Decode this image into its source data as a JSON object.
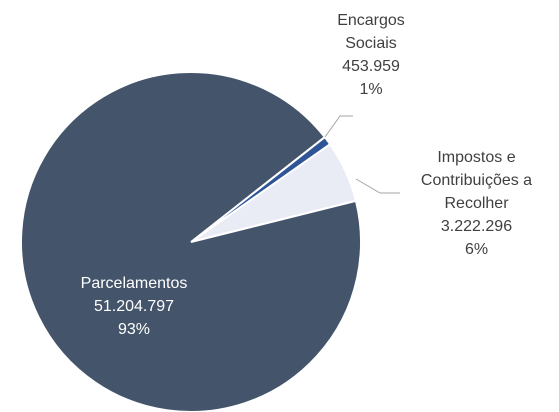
{
  "chart_data": {
    "type": "pie",
    "categories": [
      "Parcelamentos",
      "Encargos Sociais",
      "Impostos e Contribuições a Recolher"
    ],
    "values": [
      51204797,
      453959,
      3222296
    ],
    "value_labels": [
      "51.204.797",
      "453.959",
      "3.222.296"
    ],
    "percentages": [
      93,
      1,
      6
    ],
    "percentage_labels": [
      "93%",
      "1%",
      "6%"
    ],
    "colors": [
      "#44546a",
      "#2f5597",
      "#e9ecf5"
    ]
  }
}
